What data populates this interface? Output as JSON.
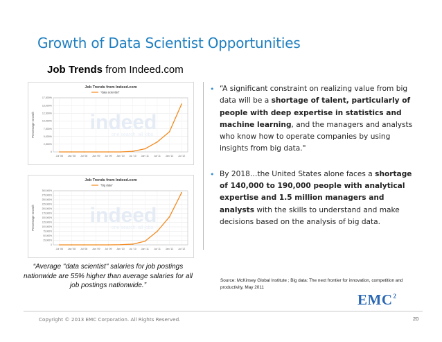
{
  "slide": {
    "title": "Growth of Data Scientist Opportunities",
    "subtitle_bold": "Job Trends",
    "subtitle_rest": " from Indeed.com"
  },
  "charts": [
    {
      "heading": "Job Trends from Indeed.com",
      "legend": "\"data scientist\"",
      "ylabel": "Percentage Growth",
      "y_ticks": [
        "17,500%",
        "15,000%",
        "12,500%",
        "10,000%",
        "7,500%",
        "5,000%",
        "2,500%",
        "0"
      ],
      "x_ticks": [
        "Jul '06",
        "Jan '08",
        "Jul '08",
        "Jan '09",
        "Jul '09",
        "Jan '10",
        "Jul '10",
        "Jan '11",
        "Jul '11",
        "Jan '12",
        "Jul '12"
      ],
      "watermark": "indeed",
      "watermark_sub": "one search. all jobs.",
      "line_color": "#f28a1e"
    },
    {
      "heading": "Job Trends from Indeed.com",
      "legend": "\"big data\"",
      "ylabel": "Percentage Growth",
      "y_ticks": [
        "300,000%",
        "275,000%",
        "250,000%",
        "225,000%",
        "200,000%",
        "175,000%",
        "150,000%",
        "125,000%",
        "100,000%",
        "75,000%",
        "50,000%",
        "25,000%",
        "0"
      ],
      "x_ticks": [
        "Jul '06",
        "Jan '08",
        "Jul '08",
        "Jan '09",
        "Jul '09",
        "Jan '10",
        "Jul '10",
        "Jan '11",
        "Jul '11",
        "Jan '12",
        "Jul '12"
      ],
      "watermark": "indeed",
      "watermark_sub": "one search. all jobs.",
      "line_color": "#f28a1e"
    }
  ],
  "chart_data": [
    {
      "type": "line",
      "title": "Job Trends from Indeed.com",
      "series": [
        {
          "name": "\"data scientist\"",
          "x": [
            "Jul '06",
            "Jan '08",
            "Jul '08",
            "Jan '09",
            "Jul '09",
            "Jan '10",
            "Jul '10",
            "Jan '11",
            "Jul '11",
            "Jan '12",
            "Jul '12"
          ],
          "values": [
            0,
            0,
            0,
            0,
            0,
            0,
            200,
            1000,
            3200,
            6500,
            15500
          ]
        }
      ],
      "ylabel": "Percentage Growth",
      "ylim": [
        0,
        17500
      ]
    },
    {
      "type": "line",
      "title": "Job Trends from Indeed.com",
      "series": [
        {
          "name": "\"big data\"",
          "x": [
            "Jul '06",
            "Jan '08",
            "Jul '08",
            "Jan '09",
            "Jul '09",
            "Jan '10",
            "Jul '10",
            "Jan '11",
            "Jul '11",
            "Jan '12",
            "Jul '12"
          ],
          "values": [
            0,
            0,
            0,
            0,
            0,
            1000,
            4000,
            20000,
            75000,
            155000,
            290000
          ]
        }
      ],
      "ylabel": "Percentage Growth",
      "ylim": [
        0,
        300000
      ]
    }
  ],
  "bullets": [
    [
      {
        "t": "“A significant constraint on realizing value from big data will be a ",
        "b": false
      },
      {
        "t": "shortage of talent, particularly of people with deep expertise  in statistics and machine learning",
        "b": true
      },
      {
        "t": ",  and the managers and analysts who know how to operate companies by using insights from big data.\"",
        "b": false
      }
    ],
    [
      {
        "t": "By 2018…the United States alone faces a ",
        "b": false
      },
      {
        "t": "shortage of 140,000 to 190,000 people with analytical expertise and 1.5 million managers and analysts",
        "b": true
      },
      {
        "t": " with the skills to understand and make decisions based on the analysis of big data.",
        "b": false
      }
    ]
  ],
  "bullet_mark": "•",
  "caption": "“Average \"data scientist\" salaries for job postings nationwide are 55% higher than average salaries for all job postings nationwide.”",
  "source": "Source: McKinsey Global Institute ; Big data: The next frontier for innovation, competition and productivity, May 2011",
  "footer": {
    "copyright": "Copyright © 2013 EMC Corporation. All Rights Reserved.",
    "page": "20"
  },
  "logo": {
    "text": "EMC",
    "sup": "2"
  }
}
